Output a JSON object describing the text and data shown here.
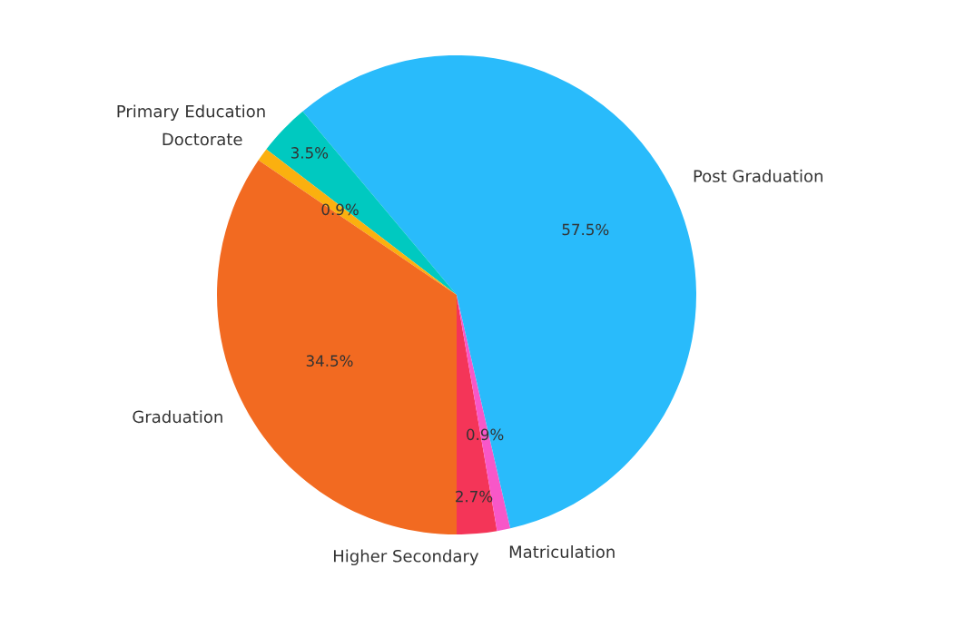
{
  "chart_data": {
    "type": "pie",
    "categories": [
      "Higher Secondary",
      "Matriculation",
      "Post Graduation",
      "Primary Education",
      "Doctorate",
      "Graduation"
    ],
    "values": [
      2.7,
      0.9,
      57.5,
      3.5,
      0.9,
      34.5
    ],
    "value_labels": [
      "2.7%",
      "0.9%",
      "57.5%",
      "3.5%",
      "0.9%",
      "34.5%"
    ],
    "colors": [
      "#f43558",
      "#f857c8",
      "#29bbfb",
      "#00c9c0",
      "#fbb00f",
      "#f26a21"
    ]
  }
}
